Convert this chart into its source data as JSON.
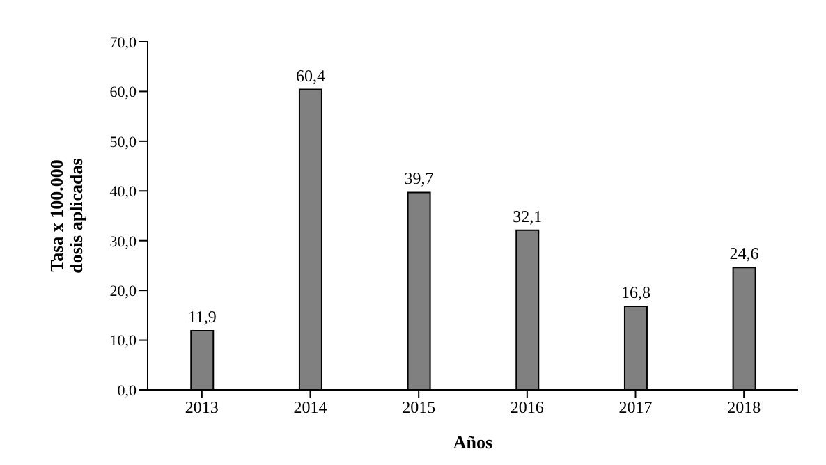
{
  "chart_data": {
    "type": "bar",
    "xlabel": "Años",
    "ylabel": "Tasa x 100.000\ndosis aplicadas",
    "categories": [
      "2013",
      "2014",
      "2015",
      "2016",
      "2017",
      "2018"
    ],
    "values": [
      11.9,
      60.4,
      39.7,
      32.1,
      16.8,
      24.6
    ],
    "value_labels": [
      "11,9",
      "60,4",
      "39,7",
      "32,1",
      "16,8",
      "24,6"
    ],
    "color": "#808080",
    "ylim": [
      0,
      70
    ],
    "yticks": [
      {
        "value": 0,
        "label": "0,0"
      },
      {
        "value": 10,
        "label": "10,0"
      },
      {
        "value": 20,
        "label": "20,0"
      },
      {
        "value": 30,
        "label": "30,0"
      },
      {
        "value": 40,
        "label": "40,0"
      },
      {
        "value": 50,
        "label": "50,0"
      },
      {
        "value": 60,
        "label": "60,0"
      },
      {
        "value": 70,
        "label": "70,0"
      }
    ],
    "grid": false,
    "legend": false
  }
}
